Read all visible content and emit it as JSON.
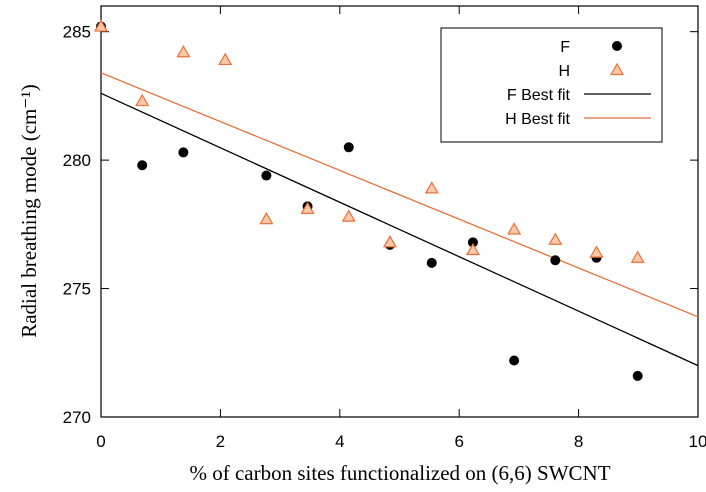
{
  "chart_data": {
    "type": "scatter",
    "x_label": "% of carbon sites functionalized on (6,6) SWCNT",
    "y_label": "Radial breathing mode  (cm⁻¹)",
    "xlim": [
      0,
      10
    ],
    "ylim": [
      270,
      286
    ],
    "xticks": [
      0,
      2,
      4,
      6,
      8,
      10
    ],
    "yticks": [
      270,
      275,
      280,
      285
    ],
    "legend": "upper right",
    "series": [
      {
        "name": "F",
        "marker": "circle",
        "color": "#000000",
        "x": [
          0,
          0.69,
          1.38,
          2.77,
          3.46,
          4.15,
          4.84,
          5.54,
          6.23,
          6.92,
          7.61,
          8.3,
          8.99
        ],
        "values": [
          285.2,
          279.8,
          280.3,
          279.4,
          278.2,
          280.5,
          276.7,
          276.0,
          276.8,
          272.2,
          276.1,
          276.2,
          271.6
        ]
      },
      {
        "name": "H",
        "marker": "triangle",
        "color": "#e8703a",
        "x": [
          0,
          0.69,
          1.38,
          2.08,
          2.77,
          3.46,
          4.15,
          4.84,
          5.54,
          6.23,
          6.92,
          7.61,
          8.3,
          8.99
        ],
        "values": [
          285.2,
          282.3,
          284.2,
          283.9,
          277.7,
          278.1,
          277.8,
          276.8,
          278.9,
          276.5,
          277.3,
          276.9,
          276.4,
          276.2
        ]
      },
      {
        "name": "F Best fit",
        "marker": "line",
        "color": "#000000",
        "x": [
          0,
          10
        ],
        "values": [
          282.6,
          272.0
        ]
      },
      {
        "name": "H Best fit",
        "marker": "line",
        "color": "#e8703a",
        "x": [
          0,
          10
        ],
        "values": [
          283.4,
          273.9
        ]
      }
    ]
  }
}
